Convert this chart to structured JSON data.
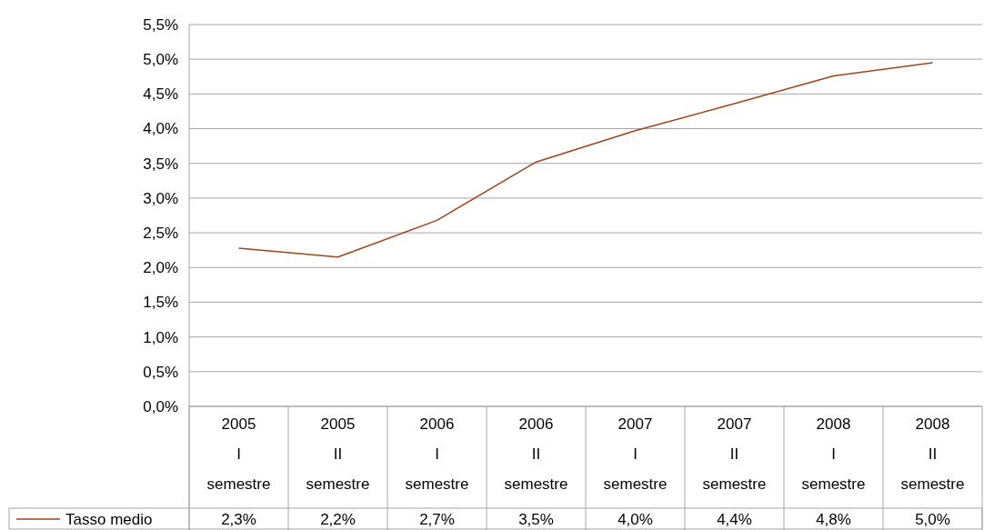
{
  "chart_data": {
    "type": "line",
    "categories": [
      "2005 I semestre",
      "2005 II semestre",
      "2006 I semestre",
      "2006 II semestre",
      "2007 I semestre",
      "2007 II semestre",
      "2008 I semestre",
      "2008 II semestre"
    ],
    "series": [
      {
        "name": "Tasso medio",
        "color": "#a0441c",
        "values": [
          2.28,
          2.15,
          2.68,
          3.52,
          3.97,
          4.36,
          4.76,
          4.95
        ],
        "value_labels": [
          "2,3%",
          "2,2%",
          "2,7%",
          "3,5%",
          "4,0%",
          "4,4%",
          "4,8%",
          "5,0%"
        ]
      }
    ],
    "ylim": [
      0,
      5.5
    ],
    "yticks": [
      {
        "value": 0,
        "label": "0,0%"
      },
      {
        "value": 0.5,
        "label": "0,5%"
      },
      {
        "value": 1,
        "label": "1,0%"
      },
      {
        "value": 1.5,
        "label": "1,5%"
      },
      {
        "value": 2,
        "label": "2,0%"
      },
      {
        "value": 2.5,
        "label": "2,5%"
      },
      {
        "value": 3,
        "label": "3,0%"
      },
      {
        "value": 3.5,
        "label": "3,5%"
      },
      {
        "value": 4,
        "label": "4,0%"
      },
      {
        "value": 4.5,
        "label": "4,5%"
      },
      {
        "value": 5,
        "label": "5,0%"
      },
      {
        "value": 5.5,
        "label": "5,5%"
      }
    ],
    "grid": "y",
    "legend": "bottom",
    "marker": "none",
    "line_style": "solid"
  }
}
